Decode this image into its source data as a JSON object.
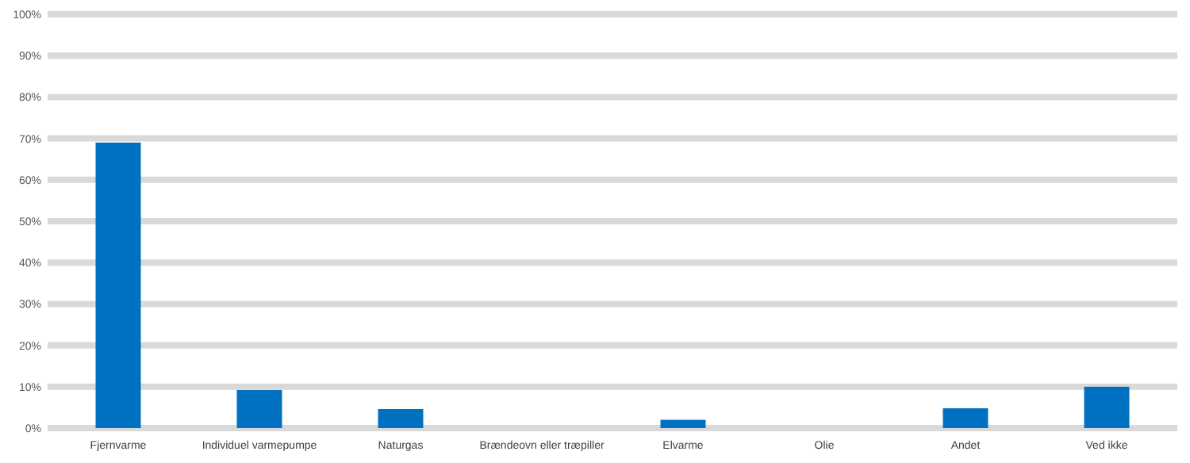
{
  "chart_data": {
    "type": "bar",
    "categories": [
      "Fjernvarme",
      "Individuel varmepumpe",
      "Naturgas",
      "Brændeovn eller træpiller",
      "Elvarme",
      "Olie",
      "Andet",
      "Ved ikke"
    ],
    "values": [
      69,
      9.2,
      4.6,
      0,
      2,
      0,
      4.8,
      10
    ],
    "color": "#0070c0",
    "ylim": [
      0,
      100
    ],
    "yticks": [
      {
        "value": 0,
        "label": "0%"
      },
      {
        "value": 10,
        "label": "10%"
      },
      {
        "value": 20,
        "label": "20%"
      },
      {
        "value": 30,
        "label": "30%"
      },
      {
        "value": 40,
        "label": "40%"
      },
      {
        "value": 50,
        "label": "50%"
      },
      {
        "value": 60,
        "label": "60%"
      },
      {
        "value": 70,
        "label": "70%"
      },
      {
        "value": 80,
        "label": "80%"
      },
      {
        "value": 90,
        "label": "90%"
      },
      {
        "value": 100,
        "label": "100%"
      }
    ],
    "grid": "y"
  }
}
